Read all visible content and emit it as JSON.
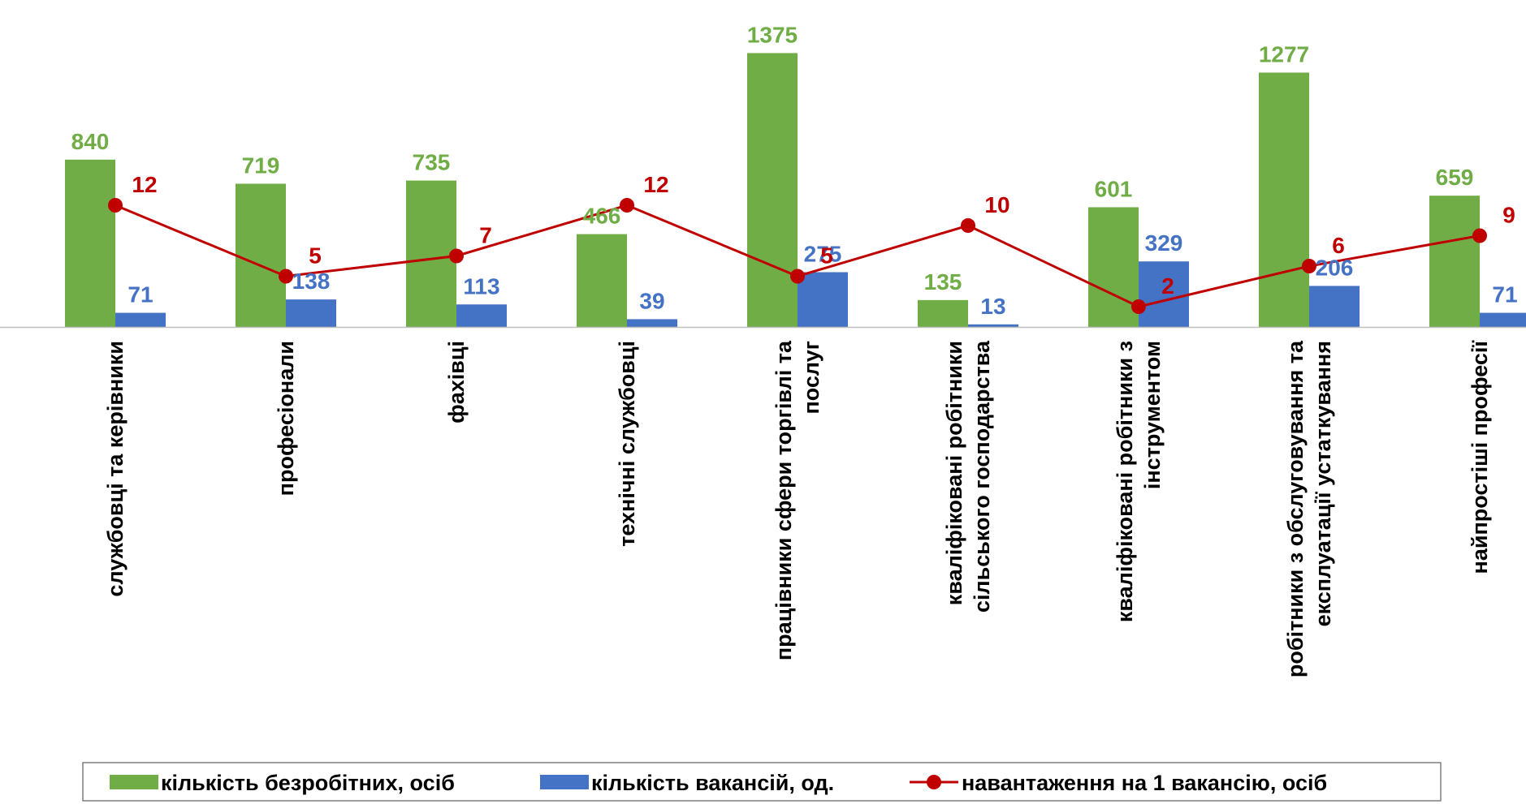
{
  "chart_data": {
    "type": "bar",
    "categories": [
      [
        "службовці та керівники"
      ],
      [
        "професіонали"
      ],
      [
        "фахівці"
      ],
      [
        "технічні службовці"
      ],
      [
        "працівники сфери торгівлі та",
        "послуг"
      ],
      [
        "кваліфіковані робітники",
        "сільського господарства"
      ],
      [
        "кваліфіковані робітники з",
        "інструментом"
      ],
      [
        "робітники з обслуговування та",
        "експлуатації устаткування"
      ],
      [
        "найпростіші професії"
      ]
    ],
    "series": [
      {
        "name": "кількість безробітних,  осіб",
        "type": "bar",
        "color": "#70ad47",
        "values": [
          840,
          719,
          735,
          466,
          1375,
          135,
          601,
          1277,
          659
        ]
      },
      {
        "name": "кількість вакансій,  од.",
        "type": "bar",
        "color": "#4472c4",
        "values": [
          71,
          138,
          113,
          39,
          275,
          13,
          329,
          206,
          71
        ]
      },
      {
        "name": "навантаження на 1 вакансію, осіб",
        "type": "line",
        "color": "#c00000",
        "values": [
          12,
          5,
          7,
          12,
          5,
          10,
          2,
          6,
          9
        ]
      }
    ],
    "bar_ylim": [
      0,
      1450
    ],
    "line_ylim": [
      0,
      30
    ],
    "legend_position": "bottom",
    "grid": false
  }
}
